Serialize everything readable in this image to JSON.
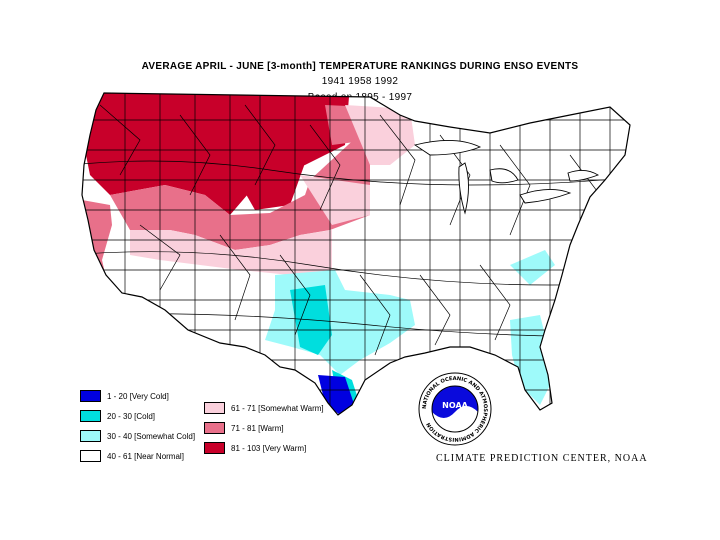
{
  "title": {
    "line1": "AVERAGE APRIL - JUNE [3-month] TEMPERATURE RANKINGS DURING ENSO EVENTS",
    "line2": "1941 1958 1992",
    "line3": "Based on 1895 - 1997"
  },
  "legend": [
    {
      "label": "1 - 20 [Very Cold]",
      "color": "#0000e0"
    },
    {
      "label": "20 - 30 [Cold]",
      "color": "#00dede"
    },
    {
      "label": "30 - 40 [Somewhat Cold]",
      "color": "#9efafa"
    },
    {
      "label": "40 - 61 [Near Normal]",
      "color": "#ffffff"
    },
    {
      "label": "61 - 71 [Somewhat Warm]",
      "color": "#fad0dc"
    },
    {
      "label": "71 - 81 [Warm]",
      "color": "#e8708a"
    },
    {
      "label": "81 - 103 [Very Warm]",
      "color": "#c8002a"
    }
  ],
  "logo": {
    "text": "NOAA",
    "ring_text": "NATIONAL OCEANIC AND ATMOSPHERIC ADMINISTRATION"
  },
  "credit": "CLIMATE PREDICTION CENTER, NOAA"
}
